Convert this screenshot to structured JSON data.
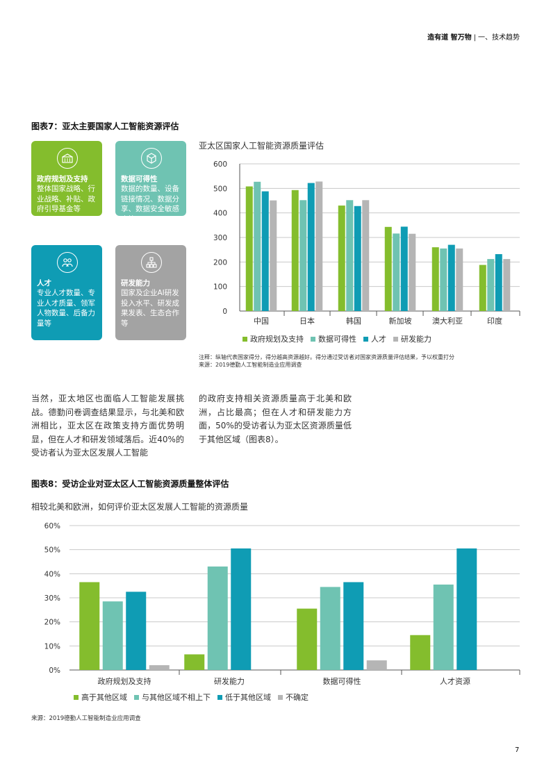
{
  "header": {
    "title": "造有道 智万物",
    "section": "一、技术趋势"
  },
  "figure7": {
    "title": "图表7：亚太主要国家人工智能资源评估",
    "tiles": [
      {
        "icon": "government-building-icon",
        "title": "政府规划及支持",
        "desc": "整体国家战略、行业战略、补贴、政府引导基金等",
        "color": "#84bd2d"
      },
      {
        "icon": "data-cube-icon",
        "title": "数据可得性",
        "desc": "数据的数量、设备链接情况、数据分享、数据安全敏感度等",
        "color": "#6fc3b2"
      },
      {
        "icon": "talent-people-icon",
        "title": "人才",
        "desc": "专业人才数量、专业人才质量、领军人物数量、后备力量等",
        "color": "#0f9cb4"
      },
      {
        "icon": "rnd-network-icon",
        "title": "研发能力",
        "desc": "国家及企业AI研发投入水平、研发成果发表、生态合作等",
        "color": "#a3a3a3"
      }
    ],
    "chart_title": "亚太区国家人工智能资源质量评估",
    "note": "注释：纵轴代表国家得分，得分越高资源越好。得分通过受访者对国家资源质量评估结果，予以权重打分",
    "source": "来源：2019德勤人工智能制造业应用调查"
  },
  "paragraphs": {
    "left": "当然，亚太地区也面临人工智能发展挑战。德勤问卷调查结果显示，与北美和欧洲相比，亚太区在政策支持方面优势明显，但在人才和研发领域落后。近40%的受访者认为亚太区发展人工智能",
    "right": "的政府支持相关资源质量高于北美和欧洲，占比最高；但在人才和研发能力方面，50%的受访者认为亚太区资源质量低于其他区域（图表8）。"
  },
  "figure8": {
    "title": "图表8：受访企业对亚太区人工智能资源质量整体评估",
    "subtitle": "相较北美和欧洲，如何评价亚太区发展人工智能的资源质量",
    "source": "来源：2019德勤人工智能制造业应用调查"
  },
  "page_number": "7",
  "colors": {
    "green": "#84bd2d",
    "teal": "#6fc3b2",
    "blue": "#0f9cb4",
    "gray": "#b5b5b5"
  },
  "chart_data": [
    {
      "type": "bar",
      "title": "亚太区国家人工智能资源质量评估",
      "categories": [
        "中国",
        "日本",
        "韩国",
        "新加坡",
        "澳大利亚",
        "印度"
      ],
      "series": [
        {
          "name": "政府规划及支持",
          "values": [
            508,
            493,
            430,
            343,
            260,
            188
          ]
        },
        {
          "name": "数据可得性",
          "values": [
            527,
            452,
            452,
            316,
            255,
            212
          ]
        },
        {
          "name": "人才",
          "values": [
            488,
            522,
            428,
            344,
            270,
            232
          ]
        },
        {
          "name": "研发能力",
          "values": [
            451,
            528,
            452,
            315,
            255,
            212
          ]
        }
      ],
      "ylim": [
        0,
        600
      ],
      "yticks": [
        "0",
        "100",
        "200",
        "300",
        "400",
        "500",
        "600"
      ],
      "grid": true,
      "legend": "bottom"
    },
    {
      "type": "bar",
      "categories": [
        "政府规划及支持",
        "研发能力",
        "数据可得性",
        "人才资源"
      ],
      "series": [
        {
          "name": "高于其他区域",
          "values": [
            36.5,
            6.5,
            25.5,
            14.5
          ]
        },
        {
          "name": "与其他区域不相上下",
          "values": [
            28.5,
            43,
            34.5,
            35.5
          ]
        },
        {
          "name": "低于其他区域",
          "values": [
            32.5,
            50.5,
            36.5,
            50.5
          ]
        },
        {
          "name": "不确定",
          "values": [
            2,
            0,
            4,
            0
          ]
        }
      ],
      "ylim": [
        0,
        60
      ],
      "yticks": [
        "0%",
        "10%",
        "20%",
        "30%",
        "40%",
        "50%",
        "60%"
      ],
      "grid": true,
      "legend": "bottom"
    }
  ]
}
